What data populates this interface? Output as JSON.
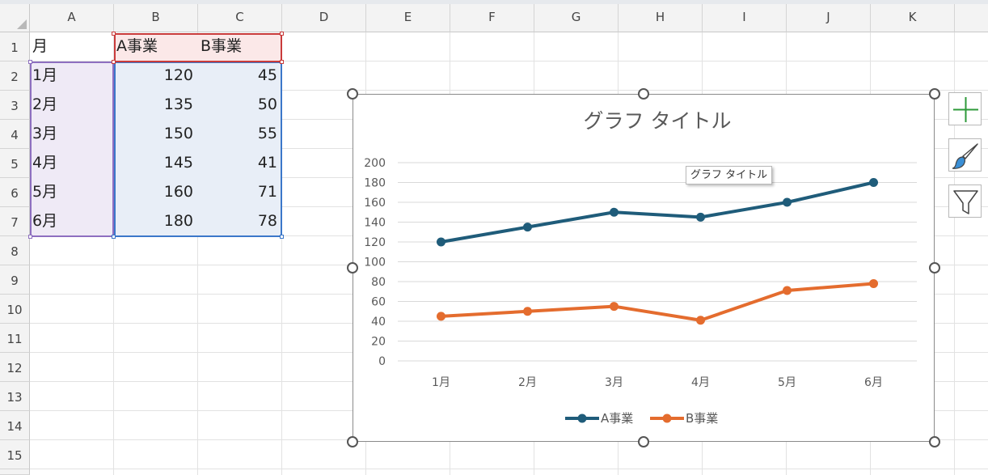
{
  "columns": [
    "A",
    "B",
    "C",
    "D",
    "E",
    "F",
    "G",
    "H",
    "I",
    "J",
    "K"
  ],
  "rows": [
    "1",
    "2",
    "3",
    "4",
    "5",
    "6",
    "7",
    "8",
    "9",
    "10",
    "11",
    "12",
    "13",
    "14",
    "15"
  ],
  "table": {
    "headers": [
      "月",
      "A事業",
      "B事業"
    ],
    "rows": [
      [
        "1月",
        "120",
        "45"
      ],
      [
        "2月",
        "135",
        "50"
      ],
      [
        "3月",
        "150",
        "55"
      ],
      [
        "4月",
        "145",
        "41"
      ],
      [
        "5月",
        "160",
        "71"
      ],
      [
        "6月",
        "180",
        "78"
      ]
    ]
  },
  "tooltip": "グラフ タイトル",
  "side_buttons": [
    "plus-icon",
    "paintbrush-icon",
    "funnel-icon"
  ],
  "chart_data": {
    "type": "line",
    "title": "グラフ タイトル",
    "categories": [
      "1月",
      "2月",
      "3月",
      "4月",
      "5月",
      "6月"
    ],
    "series": [
      {
        "name": "A事業",
        "values": [
          120,
          135,
          150,
          145,
          160,
          180
        ],
        "color": "#1f5c7a"
      },
      {
        "name": "B事業",
        "values": [
          45,
          50,
          55,
          41,
          71,
          78
        ],
        "color": "#e46c2e"
      }
    ],
    "ylim": [
      0,
      200
    ],
    "yticks": [
      "0",
      "20",
      "40",
      "60",
      "80",
      "100",
      "120",
      "140",
      "160",
      "180",
      "200"
    ],
    "grid": true,
    "legend": "bottom"
  }
}
